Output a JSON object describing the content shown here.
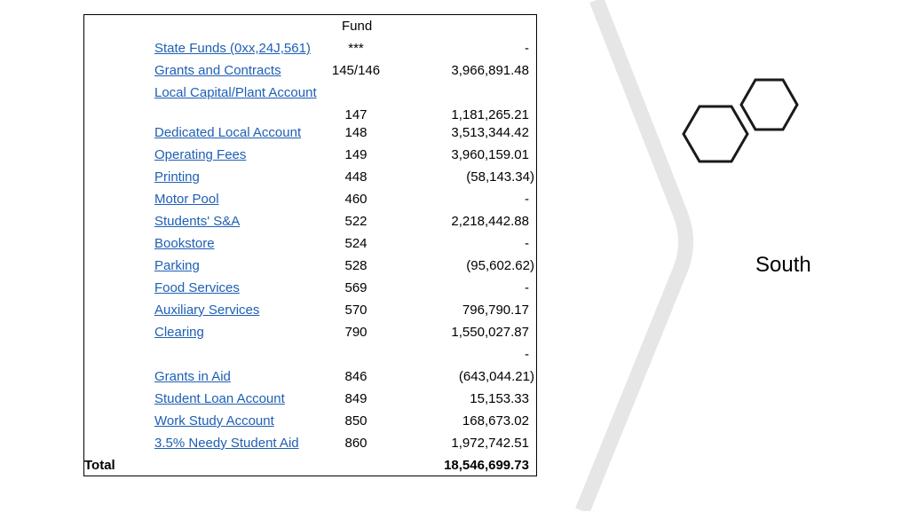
{
  "table": {
    "fund_header": "Fund",
    "rows": [
      {
        "name": "State Funds (0xx,24J,561)",
        "code": "***",
        "amount": "-"
      },
      {
        "name": "Grants and Contracts",
        "code": "145/146",
        "amount": "3,966,891.48"
      },
      {
        "name": "Local Capital/Plant Account",
        "code": "147",
        "amount": "1,181,265.21"
      },
      {
        "name": "Dedicated Local Account",
        "code": "148",
        "amount": "3,513,344.42"
      },
      {
        "name": "Operating Fees",
        "code": "149",
        "amount": "3,960,159.01"
      },
      {
        "name": "Printing",
        "code": "448",
        "amount": "(58,143.34)"
      },
      {
        "name": "Motor Pool",
        "code": "460",
        "amount": "-"
      },
      {
        "name": "Students' S&A",
        "code": "522",
        "amount": "2,218,442.88"
      },
      {
        "name": "Bookstore",
        "code": "524",
        "amount": "-"
      },
      {
        "name": "Parking",
        "code": "528",
        "amount": "(95,602.62)"
      },
      {
        "name": "Food Services",
        "code": "569",
        "amount": "-"
      },
      {
        "name": "Auxiliary Services",
        "code": "570",
        "amount": "796,790.17"
      },
      {
        "name": "Clearing",
        "code": "790",
        "amount": "1,550,027.87"
      },
      {
        "name": "",
        "code": "",
        "amount": "-"
      },
      {
        "name": "Grants in Aid",
        "code": "846",
        "amount": "(643,044.21)"
      },
      {
        "name": "Student Loan Account",
        "code": "849",
        "amount": "15,153.33"
      },
      {
        "name": "Work Study Account",
        "code": "850",
        "amount": "168,673.02"
      },
      {
        "name": "3.5% Needy Student Aid",
        "code": "860",
        "amount": "1,972,742.51"
      }
    ],
    "total_label": "Total",
    "total_amount": "18,546,699.73"
  },
  "side_label": "South",
  "colors": {
    "link": "#1e5fb4",
    "stripe": "#e6e6e6",
    "hex_stroke": "#1a1a1a"
  }
}
